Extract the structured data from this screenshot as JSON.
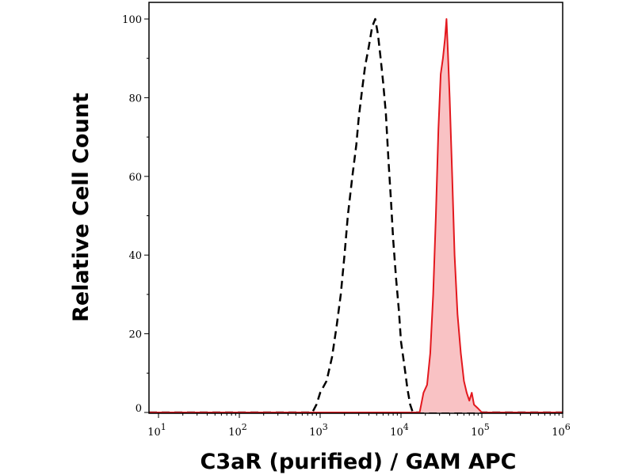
{
  "chart_data": {
    "type": "area",
    "title": "",
    "xlabel": "C3aR (purified) / GAM APC",
    "ylabel": "Relative Cell Count",
    "x_scale": "log",
    "xlim": [
      10,
      1000000
    ],
    "ylim": [
      0,
      100
    ],
    "grid": false,
    "legend": "none",
    "x_ticks": [
      {
        "base": "10",
        "exp": "1",
        "value": 10
      },
      {
        "base": "10",
        "exp": "2",
        "value": 100
      },
      {
        "base": "10",
        "exp": "3",
        "value": 1000
      },
      {
        "base": "10",
        "exp": "4",
        "value": 10000
      },
      {
        "base": "10",
        "exp": "5",
        "value": 100000
      },
      {
        "base": "10",
        "exp": "6",
        "value": 1000000
      }
    ],
    "y_ticks": [
      "0",
      "20",
      "40",
      "60",
      "80",
      "100"
    ],
    "series": [
      {
        "style": "dashed",
        "color": "#000000",
        "fill": "none",
        "points": [
          [
            7,
            0
          ],
          [
            800,
            0
          ],
          [
            900,
            2
          ],
          [
            1000,
            5
          ],
          [
            1200,
            8
          ],
          [
            1400,
            14
          ],
          [
            1600,
            22
          ],
          [
            1800,
            30
          ],
          [
            2000,
            40
          ],
          [
            2200,
            50
          ],
          [
            2500,
            60
          ],
          [
            2800,
            68
          ],
          [
            3000,
            75
          ],
          [
            3300,
            82
          ],
          [
            3600,
            88
          ],
          [
            4000,
            93
          ],
          [
            4400,
            98
          ],
          [
            4800,
            100
          ],
          [
            5200,
            96
          ],
          [
            5600,
            90
          ],
          [
            6000,
            84
          ],
          [
            6500,
            76
          ],
          [
            7000,
            64
          ],
          [
            7500,
            54
          ],
          [
            8000,
            44
          ],
          [
            8700,
            34
          ],
          [
            9400,
            26
          ],
          [
            10000,
            18
          ],
          [
            11000,
            12
          ],
          [
            12000,
            6
          ],
          [
            13000,
            2
          ],
          [
            14000,
            0
          ],
          [
            1200000,
            0
          ]
        ]
      },
      {
        "style": "solid",
        "color": "#e3181e",
        "fill": "#f9c2c4",
        "points": [
          [
            7,
            0
          ],
          [
            17000,
            0
          ],
          [
            19000,
            5
          ],
          [
            21000,
            7
          ],
          [
            23000,
            15
          ],
          [
            25000,
            30
          ],
          [
            27000,
            50
          ],
          [
            29000,
            72
          ],
          [
            31000,
            86
          ],
          [
            33000,
            90
          ],
          [
            35000,
            95
          ],
          [
            36500,
            100
          ],
          [
            38000,
            92
          ],
          [
            40000,
            80
          ],
          [
            43000,
            60
          ],
          [
            46000,
            40
          ],
          [
            50000,
            25
          ],
          [
            55000,
            15
          ],
          [
            60000,
            8
          ],
          [
            65000,
            5
          ],
          [
            70000,
            3
          ],
          [
            75000,
            5
          ],
          [
            80000,
            2
          ],
          [
            90000,
            1
          ],
          [
            100000,
            0
          ],
          [
            1200000,
            0
          ]
        ]
      }
    ]
  }
}
